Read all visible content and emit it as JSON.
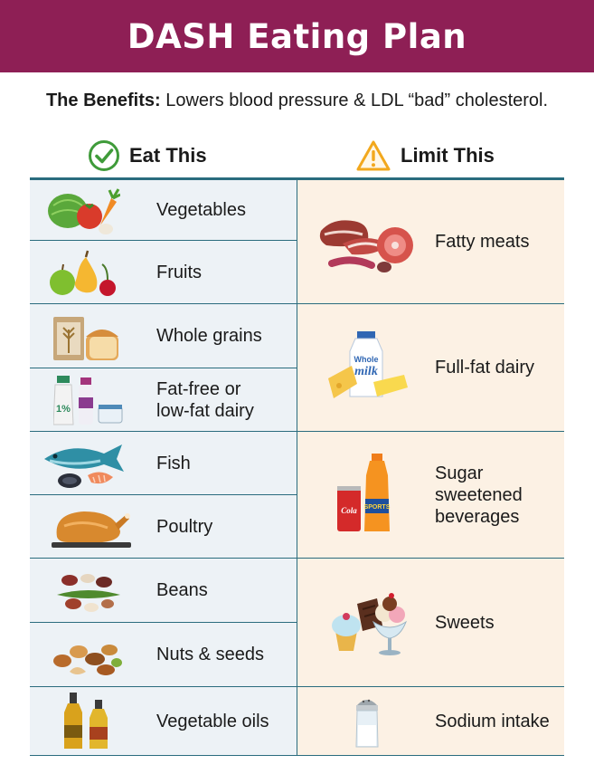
{
  "title": "DASH Eating Plan",
  "benefits": {
    "lead": "The Benefits:",
    "text": " Lowers blood pressure & LDL “bad” cholesterol."
  },
  "columns": {
    "eat": "Eat This",
    "limit": "Limit This"
  },
  "eat_items": [
    {
      "label": "Vegetables",
      "icon": "vegetables-icon"
    },
    {
      "label": "Fruits",
      "icon": "fruits-icon"
    },
    {
      "label": "Whole grains",
      "icon": "whole-grains-icon"
    },
    {
      "label_line1": "Fat-free or",
      "label_line2": "low-fat dairy",
      "icon": "low-fat-dairy-icon",
      "milk_badge": "1%"
    },
    {
      "label": "Fish",
      "icon": "fish-icon"
    },
    {
      "label": "Poultry",
      "icon": "poultry-icon"
    },
    {
      "label": "Beans",
      "icon": "beans-icon"
    },
    {
      "label": "Nuts & seeds",
      "icon": "nuts-icon"
    },
    {
      "label": "Vegetable oils",
      "icon": "oil-bottles-icon"
    }
  ],
  "limit_items": [
    {
      "label": "Fatty meats",
      "icon": "fatty-meats-icon"
    },
    {
      "label": "Full-fat dairy",
      "icon": "full-fat-dairy-icon",
      "bottle_text1": "Whole",
      "bottle_text2": "milk"
    },
    {
      "label_line1": "Sugar",
      "label_line2": "sweetened",
      "label_line3": "beverages",
      "icon": "soda-icon",
      "can_text": "Cola",
      "bottle_text": "SPORTS"
    },
    {
      "label": "Sweets",
      "icon": "sweets-icon"
    },
    {
      "label": "Sodium intake",
      "icon": "salt-shaker-icon"
    }
  ],
  "colors": {
    "banner": "#8e1f55",
    "rule": "#2a6c7e",
    "eat_bg": "#edf2f6",
    "limit_bg": "#fcf1e4",
    "check": "#3f9b3a",
    "warn": "#f2a81d"
  }
}
